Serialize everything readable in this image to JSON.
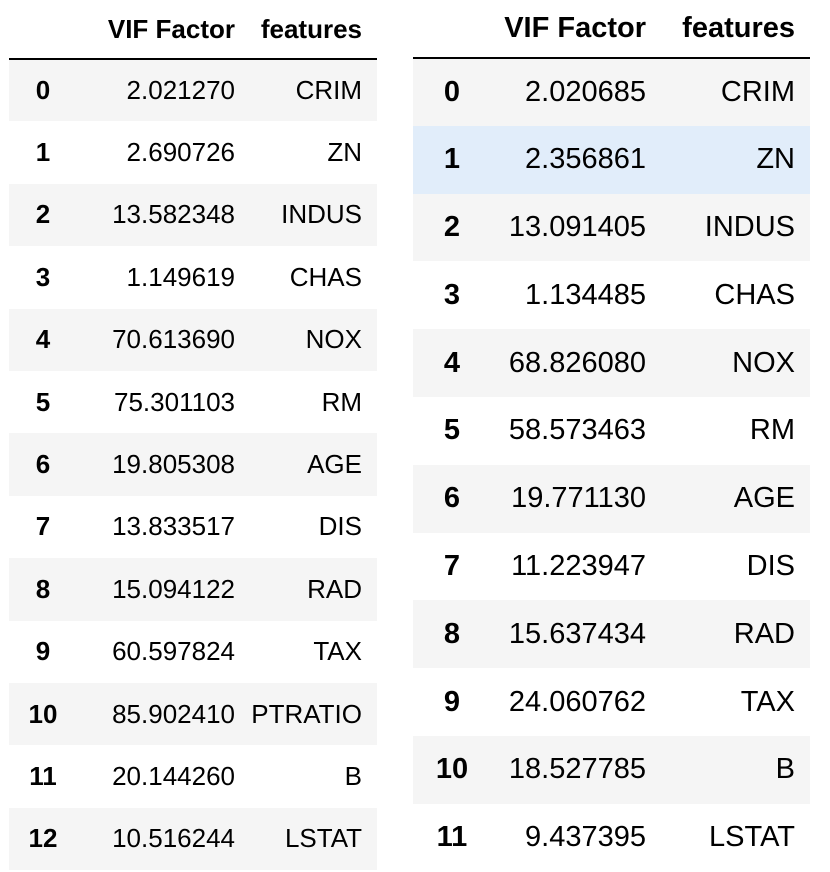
{
  "tables": [
    {
      "columns": {
        "index": "",
        "vif": "VIF Factor",
        "features": "features"
      },
      "rows": [
        {
          "index": "0",
          "vif": "2.021270",
          "feature": "CRIM"
        },
        {
          "index": "1",
          "vif": "2.690726",
          "feature": "ZN"
        },
        {
          "index": "2",
          "vif": "13.582348",
          "feature": "INDUS"
        },
        {
          "index": "3",
          "vif": "1.149619",
          "feature": "CHAS"
        },
        {
          "index": "4",
          "vif": "70.613690",
          "feature": "NOX"
        },
        {
          "index": "5",
          "vif": "75.301103",
          "feature": "RM"
        },
        {
          "index": "6",
          "vif": "19.805308",
          "feature": "AGE"
        },
        {
          "index": "7",
          "vif": "13.833517",
          "feature": "DIS"
        },
        {
          "index": "8",
          "vif": "15.094122",
          "feature": "RAD"
        },
        {
          "index": "9",
          "vif": "60.597824",
          "feature": "TAX"
        },
        {
          "index": "10",
          "vif": "85.902410",
          "feature": "PTRATIO"
        },
        {
          "index": "11",
          "vif": "20.144260",
          "feature": "B"
        },
        {
          "index": "12",
          "vif": "10.516244",
          "feature": "LSTAT"
        }
      ]
    },
    {
      "columns": {
        "index": "",
        "vif": "VIF Factor",
        "features": "features"
      },
      "highlighted_row_index": "1",
      "highlight_color": "#e1edfa",
      "rows": [
        {
          "index": "0",
          "vif": "2.020685",
          "feature": "CRIM"
        },
        {
          "index": "1",
          "vif": "2.356861",
          "feature": "ZN"
        },
        {
          "index": "2",
          "vif": "13.091405",
          "feature": "INDUS"
        },
        {
          "index": "3",
          "vif": "1.134485",
          "feature": "CHAS"
        },
        {
          "index": "4",
          "vif": "68.826080",
          "feature": "NOX"
        },
        {
          "index": "5",
          "vif": "58.573463",
          "feature": "RM"
        },
        {
          "index": "6",
          "vif": "19.771130",
          "feature": "AGE"
        },
        {
          "index": "7",
          "vif": "11.223947",
          "feature": "DIS"
        },
        {
          "index": "8",
          "vif": "15.637434",
          "feature": "RAD"
        },
        {
          "index": "9",
          "vif": "24.060762",
          "feature": "TAX"
        },
        {
          "index": "10",
          "vif": "18.527785",
          "feature": "B"
        },
        {
          "index": "11",
          "vif": "9.437395",
          "feature": "LSTAT"
        }
      ]
    }
  ],
  "colors": {
    "stripe": "#f5f5f5",
    "header_rule": "#000000",
    "text": "#000000"
  }
}
